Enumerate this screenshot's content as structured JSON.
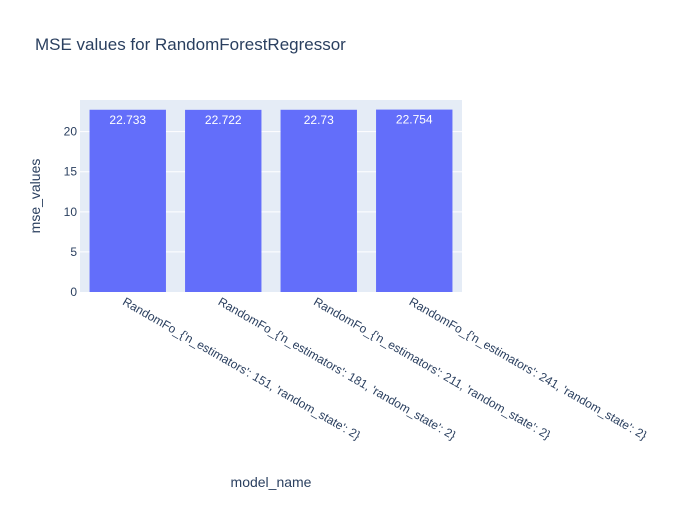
{
  "chart_data": {
    "type": "bar",
    "title": "MSE values for RandomForestRegressor",
    "xlabel": "model_name",
    "ylabel": "mse_values",
    "categories": [
      "RandomFo_{'n_estimators': 151, 'random_state': 2}",
      "RandomFo_{'n_estimators': 181, 'random_state': 2}",
      "RandomFo_{'n_estimators': 211, 'random_state': 2}",
      "RandomFo_{'n_estimators': 241, 'random_state': 2}"
    ],
    "values": [
      22.733,
      22.722,
      22.73,
      22.754
    ],
    "data_labels": [
      "22.733",
      "22.722",
      "22.73",
      "22.754"
    ],
    "ylim": [
      0,
      23.95
    ],
    "yticks": [
      0,
      5,
      10,
      15,
      20
    ],
    "grid": true,
    "colors": {
      "bar": "#636efa",
      "plot_bg": "#e5ecf6",
      "grid": "#ffffff",
      "text": "#2a3f5f",
      "label_inside": "#ffffff"
    }
  }
}
